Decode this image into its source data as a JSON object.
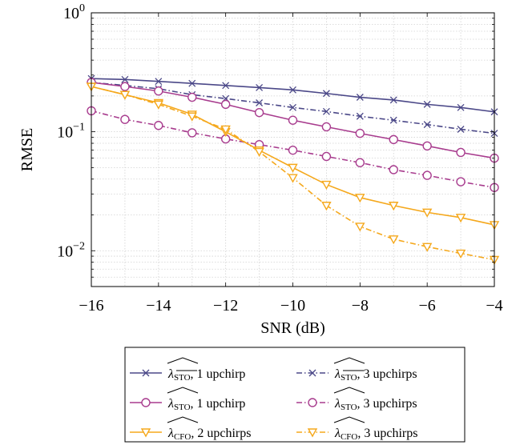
{
  "chart_data": {
    "type": "line",
    "xlabel": "SNR (dB)",
    "ylabel": "RMSE",
    "xlim": [
      -16,
      -4
    ],
    "ylim": [
      0.005,
      1
    ],
    "yscale": "log",
    "grid": true,
    "legend_position": "below",
    "x_ticks": [
      -16,
      -14,
      -12,
      -10,
      -8,
      -6,
      -4
    ],
    "x_tick_labels": [
      "−16",
      "−14",
      "−12",
      "−10",
      "−8",
      "−6",
      "−4"
    ],
    "y_ticks": [
      1,
      0.1,
      0.01
    ],
    "y_tick_labels": [
      {
        "base": "10",
        "exp": "0"
      },
      {
        "base": "10",
        "exp": "−1"
      },
      {
        "base": "10",
        "exp": "−2"
      }
    ],
    "x": [
      -16,
      -15,
      -14,
      -13,
      -12,
      -11,
      -10,
      -9,
      -8,
      -7,
      -6,
      -5,
      -4
    ],
    "series": [
      {
        "name": "STO-bar, 1 upchirp",
        "legend_sym": "λ",
        "legend_sub": "STO",
        "legend_sub_overline": true,
        "legend_rest": ", 1 upchirp",
        "color": "#4b4888",
        "dash": "solid",
        "marker": "x",
        "values": [
          0.28,
          0.275,
          0.265,
          0.255,
          0.245,
          0.235,
          0.225,
          0.21,
          0.195,
          0.185,
          0.17,
          0.16,
          0.147
        ]
      },
      {
        "name": "STO-bar, 3 upchirps",
        "legend_sym": "λ",
        "legend_sub": "STO",
        "legend_sub_overline": true,
        "legend_rest": ", 3 upchirps",
        "color": "#4b4888",
        "dash": "dashdot",
        "marker": "x",
        "values": [
          0.26,
          0.245,
          0.23,
          0.205,
          0.19,
          0.175,
          0.16,
          0.148,
          0.135,
          0.125,
          0.115,
          0.105,
          0.097
        ]
      },
      {
        "name": "STO, 1 upchirp",
        "legend_sym": "λ",
        "legend_sub": "STO",
        "legend_sub_overline": false,
        "legend_rest": ", 1 upchirp",
        "color": "#a83c8e",
        "dash": "solid",
        "marker": "circle",
        "values": [
          0.26,
          0.24,
          0.22,
          0.195,
          0.17,
          0.145,
          0.125,
          0.11,
          0.097,
          0.086,
          0.076,
          0.067,
          0.06
        ]
      },
      {
        "name": "STO, 3 upchirps",
        "legend_sym": "λ",
        "legend_sub": "STO",
        "legend_sub_overline": false,
        "legend_rest": ", 3 upchirps",
        "color": "#a83c8e",
        "dash": "dashdot",
        "marker": "circle",
        "values": [
          0.15,
          0.127,
          0.113,
          0.098,
          0.087,
          0.078,
          0.07,
          0.062,
          0.055,
          0.048,
          0.043,
          0.038,
          0.034
        ]
      },
      {
        "name": "CFO, 2 upchirps",
        "legend_sym": "λ",
        "legend_sub": "CFO",
        "legend_sub_overline": false,
        "legend_rest": ", 2 upchirps",
        "color": "#f5a81c",
        "dash": "solid",
        "marker": "triangle-down",
        "values": [
          0.24,
          0.205,
          0.175,
          0.14,
          0.1,
          0.07,
          0.05,
          0.036,
          0.028,
          0.024,
          0.021,
          0.019,
          0.0165
        ]
      },
      {
        "name": "CFO, 3 upchirps",
        "legend_sym": "λ",
        "legend_sub": "CFO",
        "legend_sub_overline": false,
        "legend_rest": ", 3 upchirps",
        "color": "#f5a81c",
        "dash": "dashdot",
        "marker": "triangle-down",
        "values": [
          0.24,
          0.205,
          0.17,
          0.135,
          0.105,
          0.068,
          0.041,
          0.024,
          0.016,
          0.0125,
          0.0108,
          0.0095,
          0.0084
        ]
      }
    ]
  }
}
